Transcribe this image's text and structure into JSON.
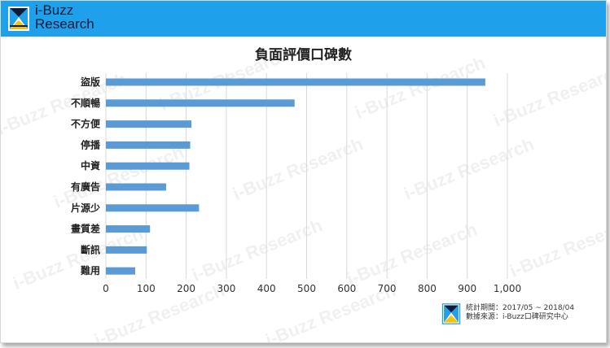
{
  "header": {
    "brand_line1": "i-Buzz",
    "brand_line2": "Research",
    "brand_colors": {
      "bar": "#1ea1ea",
      "logo_yellow": "#f5c400",
      "logo_dark": "#0b1b3a"
    }
  },
  "watermark_text": "i-Buzz Research",
  "footer": {
    "period": "統計期間：2017/05 ~ 2018/04",
    "source": "數據來源：i-Buzz口碑研究中心"
  },
  "chart_data": {
    "type": "bar",
    "orientation": "horizontal",
    "title": "負面評價口碑數",
    "categories": [
      "盜版",
      "不順暢",
      "不方便",
      "停播",
      "中資",
      "有廣告",
      "片源少",
      "畫質差",
      "斷訊",
      "難用"
    ],
    "values": [
      945,
      470,
      213,
      210,
      208,
      150,
      232,
      110,
      102,
      73
    ],
    "xlim": [
      0,
      1000
    ],
    "x_ticks": [
      0,
      100,
      200,
      300,
      400,
      500,
      600,
      700,
      800,
      900,
      1000
    ],
    "x_tick_labels": [
      "0",
      "100",
      "200",
      "300",
      "400",
      "500",
      "600",
      "700",
      "800",
      "900",
      "1,000"
    ],
    "bar_color": "#5b9bd5",
    "grid": true,
    "legend": "none"
  }
}
